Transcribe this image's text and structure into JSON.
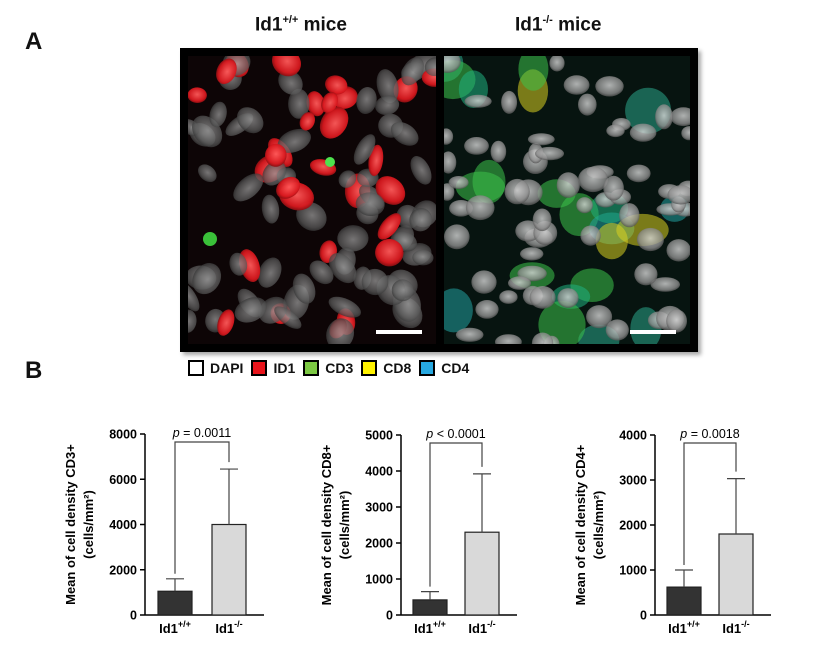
{
  "panels": {
    "a_label": "A",
    "b_label": "B"
  },
  "microscopy": {
    "left_title": {
      "base": "Id1",
      "sup": "+/+",
      "rest": " mice"
    },
    "right_title": {
      "base": "Id1",
      "sup": "-/-",
      "rest": " mice"
    }
  },
  "legend": [
    {
      "label": "DAPI",
      "color": "#ffffff"
    },
    {
      "label": "ID1",
      "color": "#e8141b"
    },
    {
      "label": "CD3",
      "color": "#7cc843"
    },
    {
      "label": "CD8",
      "color": "#fff200"
    },
    {
      "label": "CD4",
      "color": "#27a8e0"
    }
  ],
  "chart_data": [
    {
      "type": "bar",
      "categories": [
        "Id1+/+",
        "Id1-/-"
      ],
      "category_labels": [
        {
          "base": "Id1",
          "sup": "+/+"
        },
        {
          "base": "Id1",
          "sup": "-/-"
        }
      ],
      "values": [
        1050,
        4000
      ],
      "error_upper": [
        1600,
        6450
      ],
      "ylim": [
        0,
        8000
      ],
      "yticks": [
        0,
        2000,
        4000,
        6000,
        8000
      ],
      "ytick_labels": [
        "0",
        "2000",
        "4000",
        "6000",
        "8000"
      ],
      "ylabel_line1": "Mean of cell density CD3+",
      "ylabel_line2": "(cells/mm²)",
      "annotation": {
        "p": "p",
        "text": " = 0.0011"
      },
      "colors": [
        "#333333",
        "#d9d9d9"
      ]
    },
    {
      "type": "bar",
      "categories": [
        "Id1+/+",
        "Id1-/-"
      ],
      "category_labels": [
        {
          "base": "Id1",
          "sup": "+/+"
        },
        {
          "base": "Id1",
          "sup": "-/-"
        }
      ],
      "values": [
        420,
        2300
      ],
      "error_upper": [
        650,
        3920
      ],
      "ylim": [
        0,
        5000
      ],
      "yticks": [
        0,
        1000,
        2000,
        3000,
        4000,
        5000
      ],
      "ytick_labels": [
        "0",
        "1000",
        "2000",
        "3000",
        "4000",
        "5000"
      ],
      "ylabel_line1": "Mean of cell density CD8+",
      "ylabel_line2": "(cells/mm²)",
      "annotation": {
        "p": "p",
        "text": " < 0.0001"
      },
      "colors": [
        "#333333",
        "#d9d9d9"
      ]
    },
    {
      "type": "bar",
      "categories": [
        "Id1+/+",
        "Id1-/-"
      ],
      "category_labels": [
        {
          "base": "Id1",
          "sup": "+/+"
        },
        {
          "base": "Id1",
          "sup": "-/-"
        }
      ],
      "values": [
        620,
        1800
      ],
      "error_upper": [
        1000,
        3030
      ],
      "ylim": [
        0,
        4000
      ],
      "yticks": [
        0,
        1000,
        2000,
        3000,
        4000
      ],
      "ytick_labels": [
        "0",
        "1000",
        "2000",
        "3000",
        "4000"
      ],
      "ylabel_line1": "Mean of cell density CD4+",
      "ylabel_line2": "(cells/mm²)",
      "annotation": {
        "p": "p",
        "text": " = 0.0018"
      },
      "colors": [
        "#333333",
        "#d9d9d9"
      ]
    }
  ]
}
